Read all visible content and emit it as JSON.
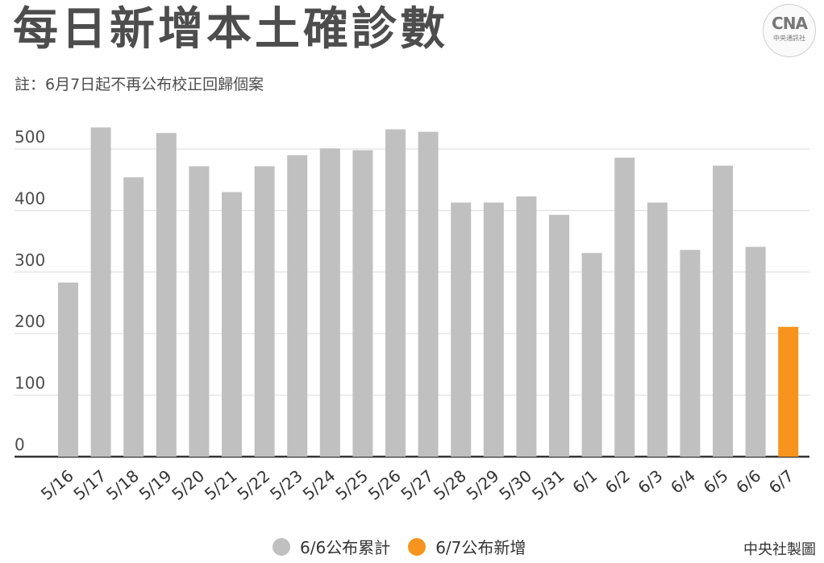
{
  "title": "每日新增本土確診數",
  "note": "註：6月7日起不再公布校正回歸個案",
  "logo": {
    "mark": "CNA",
    "text": "中央通訊社"
  },
  "credit": "中央社製圖",
  "colors": {
    "cumulative": "#c0c0c0",
    "new": "#f7941d",
    "text": "#4d4d4d"
  },
  "chart_data": {
    "type": "bar",
    "title": "每日新增本土確診數",
    "xlabel": "",
    "ylabel": "",
    "ylim": [
      0,
      500
    ],
    "yticks": [
      0,
      100,
      200,
      300,
      400,
      500
    ],
    "grid": true,
    "legend_position": "bottom",
    "categories": [
      "5/16",
      "5/17",
      "5/18",
      "5/19",
      "5/20",
      "5/21",
      "5/22",
      "5/23",
      "5/24",
      "5/25",
      "5/26",
      "5/27",
      "5/28",
      "5/29",
      "5/30",
      "5/31",
      "6/1",
      "6/2",
      "6/3",
      "6/4",
      "6/5",
      "6/6",
      "6/7"
    ],
    "series": [
      {
        "name": "6/6公布累計",
        "color": "#c0c0c0",
        "values": [
          283,
          535,
          454,
          526,
          472,
          430,
          472,
          490,
          501,
          498,
          532,
          528,
          413,
          413,
          423,
          393,
          331,
          486,
          413,
          336,
          473,
          341,
          null
        ]
      },
      {
        "name": "6/7公布新增",
        "color": "#f7941d",
        "values": [
          null,
          null,
          null,
          null,
          null,
          null,
          null,
          null,
          null,
          null,
          null,
          null,
          null,
          null,
          null,
          null,
          null,
          null,
          null,
          null,
          null,
          null,
          211
        ]
      }
    ]
  }
}
